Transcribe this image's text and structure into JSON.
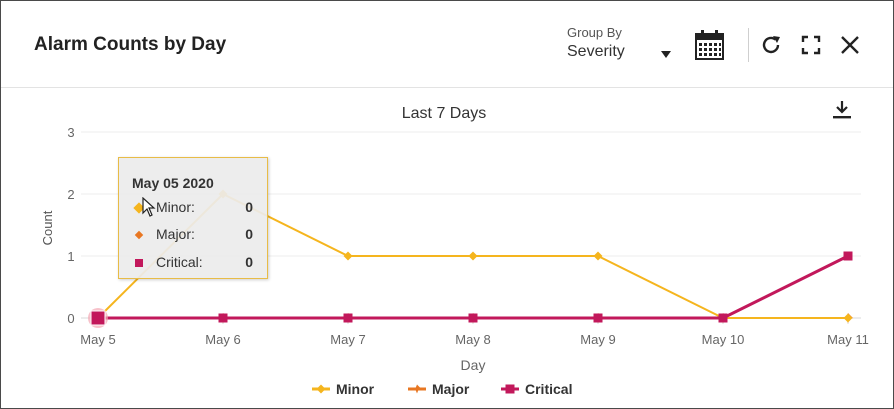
{
  "panel": {
    "title": "Alarm Counts by Day",
    "group_by": {
      "label": "Group By",
      "value": "Severity"
    }
  },
  "icons": {
    "calendar": "calendar-icon",
    "refresh": "refresh-icon",
    "expand": "fullscreen-icon",
    "close": "close-icon",
    "download": "download-icon"
  },
  "tooltip": {
    "date": "May 05 2020",
    "rows": [
      {
        "label": "Minor:",
        "value": "0",
        "color": "#f5b51e"
      },
      {
        "label": "Major:",
        "value": "0",
        "color": "#e87722"
      },
      {
        "label": "Critical:",
        "value": "0",
        "color": "#c2185b"
      }
    ]
  },
  "chart_data": {
    "type": "line",
    "title": "Last 7 Days",
    "xlabel": "Day",
    "ylabel": "Count",
    "categories": [
      "May 5",
      "May 6",
      "May 7",
      "May 8",
      "May 9",
      "May 10",
      "May 11"
    ],
    "ylim": [
      0,
      3
    ],
    "yticks": [
      0,
      1,
      2,
      3
    ],
    "grid": true,
    "legend": "bottom",
    "series": [
      {
        "name": "Minor",
        "color": "#f5b51e",
        "marker": "diamond",
        "values": [
          0,
          2,
          1,
          1,
          1,
          0,
          0
        ]
      },
      {
        "name": "Major",
        "color": "#e87722",
        "marker": "star",
        "values": [
          0,
          0,
          0,
          0,
          0,
          0,
          0
        ]
      },
      {
        "name": "Critical",
        "color": "#c2185b",
        "marker": "square",
        "values": [
          0,
          0,
          0,
          0,
          0,
          0,
          1
        ]
      }
    ]
  }
}
